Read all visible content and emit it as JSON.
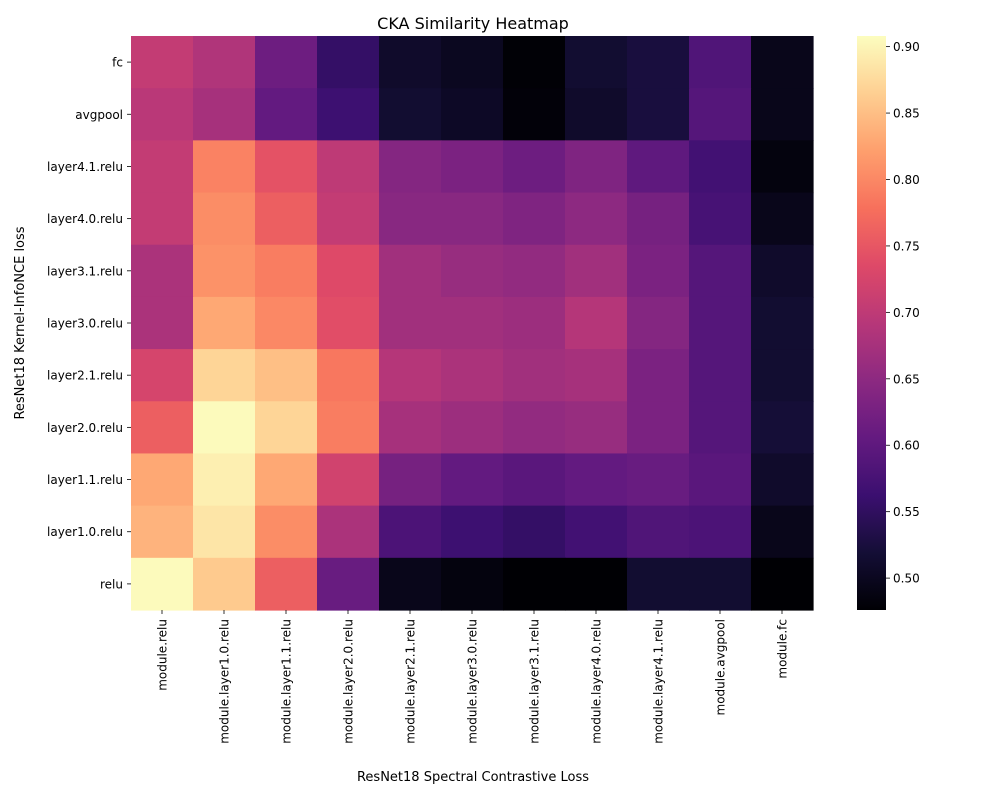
{
  "chart_data": {
    "type": "heatmap",
    "title": "CKA Similarity Heatmap",
    "xlabel": "ResNet18 Spectral Contrastive Loss",
    "ylabel": "ResNet18 Kernel-InfoNCE loss",
    "x_categories": [
      "module.relu",
      "module.layer1.0.relu",
      "module.layer1.1.relu",
      "module.layer2.0.relu",
      "module.layer2.1.relu",
      "module.layer3.0.relu",
      "module.layer3.1.relu",
      "module.layer4.0.relu",
      "module.layer4.1.relu",
      "module.avgpool",
      "module.fc"
    ],
    "y_categories": [
      "fc",
      "avgpool",
      "layer4.1.relu",
      "layer4.0.relu",
      "layer3.1.relu",
      "layer3.0.relu",
      "layer2.1.relu",
      "layer2.0.relu",
      "layer1.1.relu",
      "layer1.0.relu",
      "relu"
    ],
    "values": [
      [
        0.705,
        0.685,
        0.615,
        0.555,
        0.51,
        0.5,
        0.478,
        0.515,
        0.525,
        0.585,
        0.495
      ],
      [
        0.695,
        0.675,
        0.605,
        0.565,
        0.515,
        0.505,
        0.48,
        0.51,
        0.525,
        0.59,
        0.495
      ],
      [
        0.705,
        0.795,
        0.745,
        0.7,
        0.64,
        0.63,
        0.615,
        0.635,
        0.6,
        0.57,
        0.485
      ],
      [
        0.705,
        0.805,
        0.76,
        0.705,
        0.645,
        0.645,
        0.635,
        0.65,
        0.625,
        0.575,
        0.495
      ],
      [
        0.68,
        0.81,
        0.79,
        0.735,
        0.67,
        0.66,
        0.655,
        0.67,
        0.63,
        0.59,
        0.51
      ],
      [
        0.68,
        0.83,
        0.8,
        0.74,
        0.67,
        0.67,
        0.665,
        0.69,
        0.64,
        0.59,
        0.515
      ],
      [
        0.725,
        0.87,
        0.85,
        0.785,
        0.69,
        0.68,
        0.67,
        0.675,
        0.63,
        0.59,
        0.515
      ],
      [
        0.76,
        0.905,
        0.87,
        0.79,
        0.675,
        0.665,
        0.655,
        0.66,
        0.63,
        0.59,
        0.52
      ],
      [
        0.83,
        0.895,
        0.83,
        0.72,
        0.625,
        0.605,
        0.595,
        0.605,
        0.61,
        0.595,
        0.51
      ],
      [
        0.84,
        0.885,
        0.805,
        0.68,
        0.58,
        0.565,
        0.555,
        0.57,
        0.585,
        0.58,
        0.495
      ],
      [
        0.905,
        0.86,
        0.76,
        0.61,
        0.495,
        0.485,
        0.476,
        0.476,
        0.515,
        0.515,
        0.476
      ]
    ],
    "colormap": "magma",
    "vmin": 0.476,
    "vmax": 0.908,
    "colorbar_ticks": [
      "0.50",
      "0.55",
      "0.60",
      "0.65",
      "0.70",
      "0.75",
      "0.80",
      "0.85",
      "0.90"
    ],
    "colorbar_tick_values": [
      0.5,
      0.55,
      0.6,
      0.65,
      0.7,
      0.75,
      0.8,
      0.85,
      0.9
    ],
    "grid": false
  }
}
